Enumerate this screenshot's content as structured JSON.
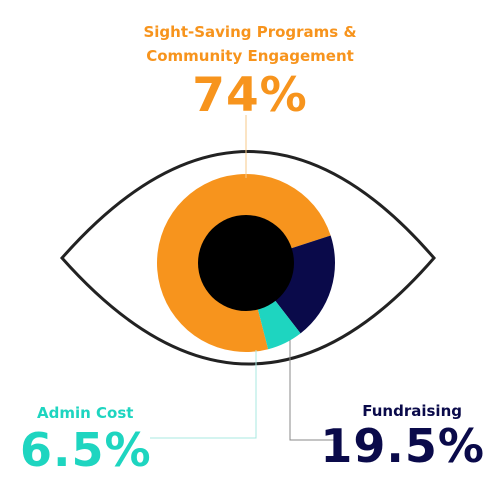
{
  "chart_data": {
    "type": "pie",
    "style": "donut",
    "categories": [
      "Sight-Saving Programs & Community Engagement",
      "Fundraising",
      "Admin Cost"
    ],
    "values": [
      74,
      19.5,
      6.5
    ],
    "value_labels": [
      "74%",
      "19.5%",
      "6.5%"
    ],
    "colors": [
      "#F7941D",
      "#0A0A4A",
      "#1ED5C0"
    ],
    "center_color": "#000000",
    "outline_color": "#222222"
  },
  "labels": {
    "program_line1": "Sight-Saving Programs &",
    "program_line2": "Community Engagement",
    "program_value": "74%",
    "admin_name": "Admin Cost",
    "admin_value": "6.5%",
    "fund_name": "Fundraising",
    "fund_value": "19.5%"
  }
}
